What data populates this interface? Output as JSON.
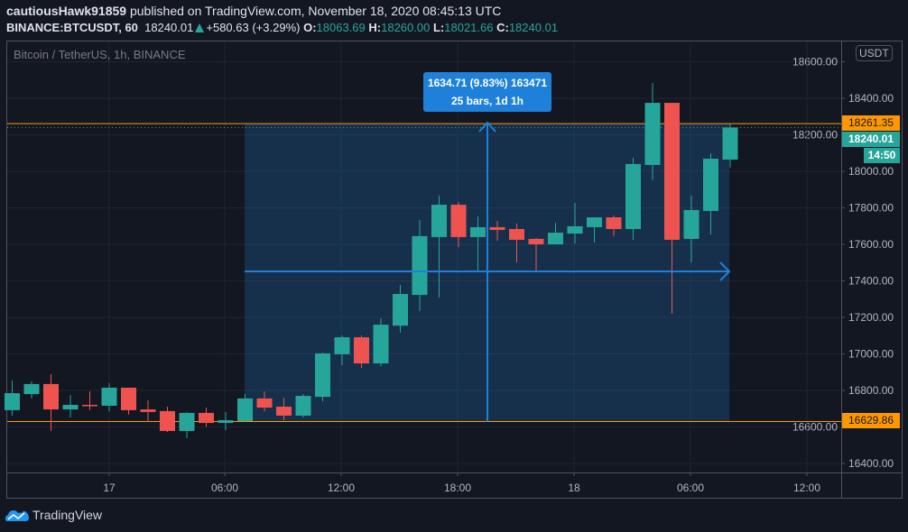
{
  "header": {
    "author": "cautiousHawk91859",
    "published": " published on TradingView.com, November 18, 2020 08:45:13 UTC",
    "symbol": "BINANCE:BTCUSDT, 60",
    "last": "18240.01",
    "change": "+580.63 (+3.29%)",
    "o_label": "O:",
    "o": "18063.69",
    "h_label": "H:",
    "h": "18260.00",
    "l_label": "L:",
    "l": "18021.66",
    "c_label": "C:",
    "c": "18240.01"
  },
  "chart": {
    "legend": "Bitcoin / TetherUS, 1h, BINANCE",
    "currency": "USDT",
    "price_ticks": [
      "18600.00",
      "18400.00",
      "18200.00",
      "18000.00",
      "17800.00",
      "17600.00",
      "17400.00",
      "17200.00",
      "17000.00",
      "16800.00",
      "16600.00",
      "16400.00"
    ],
    "time_ticks": [
      "17",
      "06:00",
      "12:00",
      "18:00",
      "18",
      "06:00",
      "12:00"
    ],
    "upper_line": "18261.35",
    "lower_line": "16629.86",
    "last_price": "18240.01",
    "countdown": "14:50",
    "measure_line1": "1634.71 (9.83%) 163471",
    "measure_line2": "25 bars, 1d 1h",
    "colors": {
      "up": "#26a69a",
      "down": "#ef5350",
      "line": "#ff9800",
      "measure": "#1e80d8"
    }
  },
  "chart_data": {
    "type": "candlestick",
    "candles": [
      {
        "t": "16 19:00",
        "o": 16692,
        "h": 16854,
        "l": 16662,
        "c": 16785
      },
      {
        "t": "16 20:00",
        "o": 16780,
        "h": 16850,
        "l": 16756,
        "c": 16835
      },
      {
        "t": "16 21:00",
        "o": 16835,
        "h": 16889,
        "l": 16578,
        "c": 16696
      },
      {
        "t": "16 22:00",
        "o": 16696,
        "h": 16775,
        "l": 16652,
        "c": 16721
      },
      {
        "t": "16 23:00",
        "o": 16721,
        "h": 16795,
        "l": 16692,
        "c": 16716
      },
      {
        "t": "17 00:00",
        "o": 16716,
        "h": 16840,
        "l": 16686,
        "c": 16815
      },
      {
        "t": "17 01:00",
        "o": 16815,
        "h": 16815,
        "l": 16667,
        "c": 16692
      },
      {
        "t": "17 02:00",
        "o": 16696,
        "h": 16746,
        "l": 16627,
        "c": 16682
      },
      {
        "t": "17 03:00",
        "o": 16687,
        "h": 16711,
        "l": 16573,
        "c": 16578
      },
      {
        "t": "17 04:00",
        "o": 16578,
        "h": 16682,
        "l": 16538,
        "c": 16677
      },
      {
        "t": "17 05:00",
        "o": 16677,
        "h": 16706,
        "l": 16602,
        "c": 16622
      },
      {
        "t": "17 06:00",
        "o": 16622,
        "h": 16682,
        "l": 16583,
        "c": 16637
      },
      {
        "t": "17 07:00",
        "o": 16632,
        "h": 16780,
        "l": 16627,
        "c": 16756
      },
      {
        "t": "17 08:00",
        "o": 16756,
        "h": 16795,
        "l": 16686,
        "c": 16706
      },
      {
        "t": "17 09:00",
        "o": 16711,
        "h": 16760,
        "l": 16637,
        "c": 16662
      },
      {
        "t": "17 10:00",
        "o": 16662,
        "h": 16780,
        "l": 16652,
        "c": 16770
      },
      {
        "t": "17 11:00",
        "o": 16765,
        "h": 17008,
        "l": 16741,
        "c": 17003
      },
      {
        "t": "17 12:00",
        "o": 16998,
        "h": 17101,
        "l": 16938,
        "c": 17091
      },
      {
        "t": "17 13:00",
        "o": 17091,
        "h": 17101,
        "l": 16923,
        "c": 16948
      },
      {
        "t": "17 14:00",
        "o": 16948,
        "h": 17195,
        "l": 16933,
        "c": 17160
      },
      {
        "t": "17 15:00",
        "o": 17155,
        "h": 17378,
        "l": 17116,
        "c": 17328
      },
      {
        "t": "17 16:00",
        "o": 17323,
        "h": 17733,
        "l": 17235,
        "c": 17645
      },
      {
        "t": "17 17:00",
        "o": 17640,
        "h": 17867,
        "l": 17309,
        "c": 17817
      },
      {
        "t": "17 18:00",
        "o": 17817,
        "h": 17832,
        "l": 17585,
        "c": 17640
      },
      {
        "t": "17 19:00",
        "o": 17640,
        "h": 17753,
        "l": 17452,
        "c": 17694
      },
      {
        "t": "17 20:00",
        "o": 17694,
        "h": 17728,
        "l": 17620,
        "c": 17679
      },
      {
        "t": "17 21:00",
        "o": 17684,
        "h": 17714,
        "l": 17501,
        "c": 17625
      },
      {
        "t": "17 22:00",
        "o": 17630,
        "h": 17635,
        "l": 17457,
        "c": 17600
      },
      {
        "t": "17 23:00",
        "o": 17600,
        "h": 17718,
        "l": 17600,
        "c": 17664
      },
      {
        "t": "18 00:00",
        "o": 17659,
        "h": 17827,
        "l": 17605,
        "c": 17699
      },
      {
        "t": "18 01:00",
        "o": 17694,
        "h": 17748,
        "l": 17610,
        "c": 17748
      },
      {
        "t": "18 02:00",
        "o": 17748,
        "h": 17758,
        "l": 17645,
        "c": 17684
      },
      {
        "t": "18 03:00",
        "o": 17684,
        "h": 18074,
        "l": 17625,
        "c": 18040
      },
      {
        "t": "18 04:00",
        "o": 18035,
        "h": 18484,
        "l": 17951,
        "c": 18375
      },
      {
        "t": "18 05:00",
        "o": 18375,
        "h": 18375,
        "l": 17220,
        "c": 17625
      },
      {
        "t": "18 06:00",
        "o": 17630,
        "h": 17867,
        "l": 17501,
        "c": 17788
      },
      {
        "t": "18 07:00",
        "o": 17783,
        "h": 18099,
        "l": 17654,
        "c": 18069
      },
      {
        "t": "18 08:00",
        "o": 18064,
        "h": 18260,
        "l": 18021,
        "c": 18240
      }
    ],
    "yaxis_range": [
      16350,
      18700
    ]
  }
}
